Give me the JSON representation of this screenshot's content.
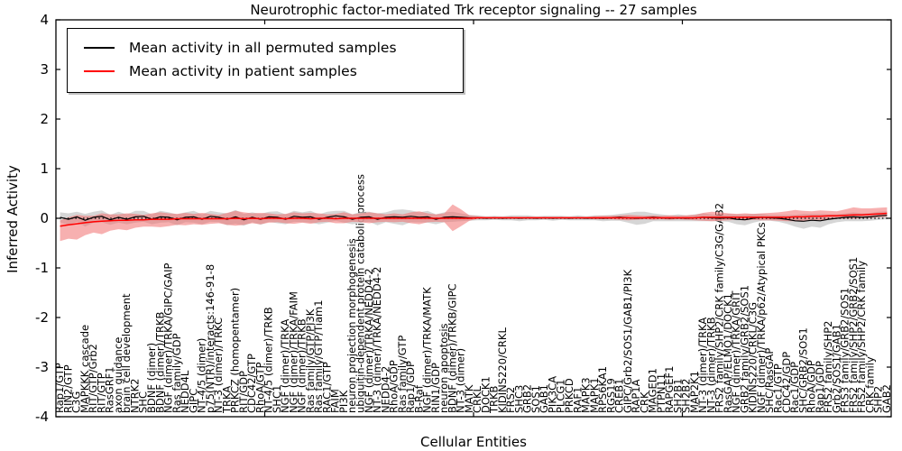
{
  "title": "Neurotrophic factor-mediated Trk receptor signaling -- 27 samples",
  "legend": {
    "entries": [
      {
        "label": "Mean activity in all permuted samples",
        "color": "#000000"
      },
      {
        "label": "Mean activity in patient samples",
        "color": "#ff0000"
      }
    ]
  },
  "axes": {
    "ylabel": "Inferred Activity",
    "xlabel": "Cellular Entities"
  },
  "chart_data": {
    "type": "line",
    "title": "Neurotrophic factor-mediated Trk receptor signaling -- 27 samples",
    "xlabel": "Cellular Entities",
    "ylabel": "Inferred Activity",
    "ylim": [
      -4,
      4
    ],
    "yticks": [
      4,
      3,
      2,
      1,
      0,
      -1,
      -2,
      -3,
      -4
    ],
    "xticks_major": [
      25,
      50,
      75
    ],
    "grid": false,
    "zero_line": {
      "style": "dotted",
      "color": "#000000",
      "y": 0
    },
    "legend_position": "upper left",
    "band_colors": {
      "permuted": "#c8c8c8",
      "patient": "#f07070"
    },
    "categories": [
      "Rap1/GTP",
      "RIN2/GTP",
      "C3G",
      "MAPKKK cascade",
      "RIT/GTP/Grb2",
      "RIT/GTP",
      "RasGRF1",
      "axon guidance",
      "brain cell development",
      "NTRK2",
      "SHC",
      "BDNF (dimer)",
      "BDNF (dimer)/TRKB",
      "NGF (dimer)/TRKA/GIPC/GAIP",
      "Ras family/GDP",
      "NEDD4L",
      "GIPC",
      "NT-4/5 (dimer)",
      "p75(NTR)/interacts:146-91-8",
      "NT-3 (dimer)/TRKC",
      "TRKA",
      "PRKCZ (homopentamer)",
      "RIT/GDP",
      "CDC42/GTP",
      "RhoA/GTP",
      "NT-4/5 (dimer)/TRKB",
      "SHC1",
      "NGF (dimer)/TRKA",
      "NGF (dimer)/TRKA/FAIM",
      "NGF (dimer)/TRKB",
      "Ras family/GTP/PI3K",
      "Ras family/GTP/Tiam1",
      "RAC1/GTP",
      "FAIM",
      "PI3K",
      "neuron projection morphogenesis",
      "ubiquitin-dependent protein catabolic process",
      "NGF (dimer)/TRKA/NEDD4-2",
      "NT-3 (dimer)/TRKA/NEDD4-2",
      "NEDD4-2",
      "RhoA/GDP",
      "Ras family/GTP",
      "Rap1/GDP",
      "B-Raf",
      "NGF (dimer)/TRKA/MATK",
      "RIN1/GDP",
      "neuron apoptosis",
      "BDNF (dimer)/TRKB/GIPC",
      "NT-3 (dimer)",
      "MATK",
      "CRKL",
      "DOCK1",
      "TRKB",
      "KIDINS220/CRKL",
      "FRS2",
      "SHC3",
      "GRB2",
      "SOS1",
      "GAB1",
      "PIK3CA",
      "PLCG1",
      "PRKCD",
      "RAF1",
      "MAPK3",
      "MAPK1",
      "RPS6KA1",
      "RGS19",
      "CREB1",
      "GIPC/Grb2/SOS1/GAB1/PI3K",
      "RAP1A",
      "CRK",
      "MAGED1",
      "PTPN11",
      "RAPGEF1",
      "SH2B1",
      "SH2B2",
      "MAP2K1",
      "NT-3 (dimer)/TRKA",
      "NT-3 (dimer)/TRKB",
      "FRS2 family/SHP2/CRK family/C3G/GAB2",
      "RasGAP/ELMO1/DOCK1",
      "NGF (dimer)/TRKA/GRIT",
      "GRB2 family/GRB2/SOS1",
      "KIDINS220/CRKL/C3G",
      "NGF (dimer)/TRKA/p62/Atypical PKCs",
      "SHC/RasGAP",
      "Rac1/GTP",
      "CDC42/GDP",
      "Rac1/GDP",
      "SHC/GRB2/SOS1",
      "RhoA/GDP",
      "Rap1/GDP",
      "FRS2 family/SHP2",
      "Grb2/SOS1/GAB1",
      "FRS3 family/GRB2/SOS1",
      "FRS2 family/SHP2/GRB2/SOS1",
      "FRS2 family/SHP2/CRK family",
      "CRK family",
      "SHP2",
      "GAB2"
    ],
    "series": [
      {
        "name": "Mean activity in all permuted samples",
        "color": "#000000",
        "values": [
          0.02,
          -0.02,
          0.03,
          -0.04,
          0.02,
          0.04,
          -0.03,
          0.02,
          -0.02,
          0.03,
          0.04,
          -0.02,
          0.03,
          0.02,
          -0.03,
          0.02,
          0.03,
          -0.02,
          0.04,
          0.02,
          -0.02,
          0.03,
          -0.03,
          0.02,
          -0.02,
          0.03,
          0.02,
          -0.02,
          0.04,
          0.02,
          0.03,
          -0.02,
          0.02,
          0.05,
          0.03,
          -0.02,
          0.02,
          0.03,
          -0.02,
          0.02,
          0.03,
          0.02,
          0.04,
          0.02,
          0.03,
          -0.02,
          0.02,
          0.03,
          0.02,
          0.01,
          0.01,
          0,
          0.01,
          0,
          0.01,
          0,
          0.01,
          0,
          0.01,
          0,
          0.01,
          0,
          0.01,
          0,
          0.01,
          0,
          0.01,
          0.02,
          0.01,
          0,
          0.01,
          0.02,
          0.01,
          0,
          0.01,
          0,
          0.01,
          0.02,
          0.01,
          0,
          0.01,
          -0.02,
          -0.03,
          0,
          0.02,
          0.01,
          0,
          -0.02,
          -0.05,
          -0.06,
          -0.04,
          -0.05,
          -0.02,
          0,
          0.02,
          0.03,
          0.02,
          0.03,
          0.05,
          0.06
        ],
        "band_halfwidth": [
          0.1,
          0.12,
          0.1,
          0.13,
          0.11,
          0.12,
          0.1,
          0.11,
          0.1,
          0.12,
          0.11,
          0.1,
          0.12,
          0.1,
          0.11,
          0.1,
          0.12,
          0.1,
          0.11,
          0.1,
          0.12,
          0.14,
          0.12,
          0.1,
          0.11,
          0.1,
          0.12,
          0.1,
          0.11,
          0.1,
          0.12,
          0.1,
          0.11,
          0.1,
          0.12,
          0.1,
          0.11,
          0.1,
          0.12,
          0.1,
          0.14,
          0.16,
          0.12,
          0.1,
          0.12,
          0.1,
          0.1,
          0.1,
          0.08,
          0.06,
          0.05,
          0.04,
          0.04,
          0.04,
          0.05,
          0.06,
          0.05,
          0.04,
          0.04,
          0.05,
          0.04,
          0.04,
          0.05,
          0.04,
          0.05,
          0.06,
          0.06,
          0.07,
          0.1,
          0.13,
          0.12,
          0.08,
          0.07,
          0.06,
          0.07,
          0.06,
          0.07,
          0.08,
          0.07,
          0.06,
          0.08,
          0.1,
          0.11,
          0.09,
          0.07,
          0.06,
          0.07,
          0.09,
          0.12,
          0.15,
          0.13,
          0.14,
          0.1,
          0.08,
          0.08,
          0.09,
          0.08,
          0.08,
          0.08,
          0.08
        ]
      },
      {
        "name": "Mean activity in patient samples",
        "color": "#ff0000",
        "values": [
          -0.16,
          -0.13,
          -0.11,
          -0.09,
          -0.07,
          -0.06,
          -0.05,
          -0.04,
          -0.04,
          -0.03,
          -0.03,
          -0.02,
          -0.02,
          -0.02,
          -0.01,
          -0.01,
          -0.01,
          -0.01,
          -0.01,
          -0.01,
          -0.01,
          0,
          -0.01,
          0,
          -0.01,
          0,
          0,
          -0.01,
          0,
          0,
          -0.01,
          0,
          0,
          -0.01,
          0,
          0,
          0,
          0,
          0,
          0,
          0,
          0,
          0,
          0,
          0,
          0,
          0,
          0,
          0,
          0,
          0.01,
          0.01,
          0.01,
          0.01,
          0.01,
          0.01,
          0.01,
          0.01,
          0.01,
          0.01,
          0.01,
          0.01,
          0.01,
          0.01,
          0.01,
          0.01,
          0.01,
          0.01,
          0.01,
          0.01,
          0.01,
          0.01,
          0.01,
          0.01,
          0.01,
          0.01,
          0.01,
          0.02,
          0.02,
          0.02,
          0.02,
          0.02,
          0.02,
          0.02,
          0.02,
          0.02,
          0.02,
          0.02,
          0.03,
          0.03,
          0.04,
          0.04,
          0.05,
          0.05,
          0.06,
          0.07,
          0.07,
          0.08,
          0.09,
          0.1
        ],
        "band_upper": [
          0.12,
          0.15,
          0.18,
          0.14,
          0.12,
          0.16,
          0.13,
          0.12,
          0.14,
          0.12,
          0.1,
          0.12,
          0.14,
          0.12,
          0.1,
          0.12,
          0.1,
          0.12,
          0.1,
          0.08,
          0.12,
          0.15,
          0.13,
          0.1,
          0.12,
          0.1,
          0.08,
          0.1,
          0.12,
          0.1,
          0.12,
          0.1,
          0.08,
          0.1,
          0.12,
          0.08,
          0.1,
          0.12,
          0.1,
          0.08,
          0.1,
          0.08,
          0.12,
          0.14,
          0.1,
          0.08,
          0.1,
          0.28,
          0.18,
          0.06,
          0.03,
          0.02,
          0.02,
          0.02,
          0.02,
          0.02,
          0.02,
          0.02,
          0.02,
          0.02,
          0.02,
          0.02,
          0.02,
          0.02,
          0.03,
          0.04,
          0.04,
          0.05,
          0.06,
          0.05,
          0.04,
          0.05,
          0.04,
          0.05,
          0.04,
          0.05,
          0.06,
          0.09,
          0.11,
          0.1,
          0.08,
          0.07,
          0.08,
          0.07,
          0.08,
          0.09,
          0.1,
          0.12,
          0.14,
          0.12,
          0.1,
          0.12,
          0.1,
          0.09,
          0.12,
          0.15,
          0.13,
          0.12,
          0.12,
          0.12
        ],
        "band_lower": [
          0.3,
          0.28,
          0.32,
          0.25,
          0.22,
          0.26,
          0.2,
          0.18,
          0.2,
          0.16,
          0.14,
          0.15,
          0.16,
          0.14,
          0.12,
          0.13,
          0.11,
          0.12,
          0.1,
          0.09,
          0.12,
          0.15,
          0.12,
          0.1,
          0.11,
          0.09,
          0.08,
          0.09,
          0.11,
          0.09,
          0.1,
          0.08,
          0.07,
          0.09,
          0.1,
          0.07,
          0.08,
          0.1,
          0.08,
          0.07,
          0.08,
          0.07,
          0.1,
          0.12,
          0.08,
          0.07,
          0.08,
          0.26,
          0.16,
          0.05,
          0.02,
          0.02,
          0.02,
          0.02,
          0.02,
          0.02,
          0.02,
          0.02,
          0.02,
          0.02,
          0.02,
          0.02,
          0.02,
          0.02,
          0.03,
          0.03,
          0.03,
          0.04,
          0.05,
          0.04,
          0.03,
          0.04,
          0.03,
          0.04,
          0.03,
          0.04,
          0.05,
          0.07,
          0.08,
          0.07,
          0.06,
          0.05,
          0.06,
          0.05,
          0.06,
          0.06,
          0.07,
          0.08,
          0.09,
          0.08,
          0.07,
          0.08,
          0.07,
          0.06,
          0.07,
          0.08,
          0.07,
          0.07,
          0.07,
          0.07
        ]
      }
    ]
  }
}
